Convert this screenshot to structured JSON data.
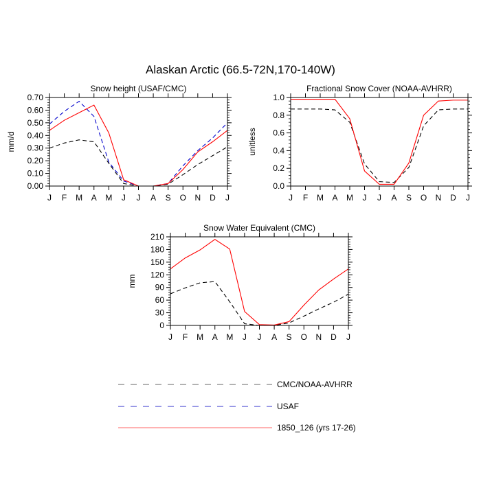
{
  "page_title": "Alaskan Arctic (66.5-72N,170-140W)",
  "styles": {
    "series": {
      "obs_black": {
        "color": "#000000",
        "dash": "dashed"
      },
      "usaf_blue": {
        "color": "#0000cc",
        "dash": "dashed"
      },
      "model_red": {
        "color": "#ff0000",
        "dash": "solid"
      }
    }
  },
  "legend": {
    "entries": [
      {
        "key": "obs_black",
        "label": "CMC/NOAA-AVHRR",
        "color": "#666666",
        "dash": "dashed"
      },
      {
        "key": "usaf_blue",
        "label": "USAF",
        "color": "#3333cc",
        "dash": "dashed"
      },
      {
        "key": "model_red",
        "label": "1850_126 (yrs 17-26)",
        "color": "#ff6666",
        "dash": "solid"
      }
    ]
  },
  "chart_data": [
    {
      "type": "line",
      "title": "Snow height (USAF/CMC)",
      "ylabel": "mm/d",
      "categories": [
        "J",
        "F",
        "M",
        "A",
        "M",
        "J",
        "J",
        "A",
        "S",
        "O",
        "N",
        "D",
        "J"
      ],
      "ylim": [
        0,
        0.7
      ],
      "yticks": [
        "0.00",
        "0.10",
        "0.20",
        "0.30",
        "0.40",
        "0.50",
        "0.60",
        "0.70"
      ],
      "ytick_values": [
        0,
        0.1,
        0.2,
        0.3,
        0.4,
        0.5,
        0.6,
        0.7
      ],
      "series": [
        {
          "key": "obs_black",
          "values": [
            0.3,
            0.34,
            0.365,
            0.35,
            0.18,
            0.02,
            0.0,
            0.0,
            0.015,
            0.09,
            0.17,
            0.24,
            0.31
          ]
        },
        {
          "key": "usaf_blue",
          "values": [
            0.49,
            0.59,
            0.67,
            0.55,
            0.19,
            0.04,
            0.0,
            0.0,
            0.02,
            0.16,
            0.28,
            0.38,
            0.5
          ]
        },
        {
          "key": "model_red",
          "values": [
            0.44,
            0.52,
            0.58,
            0.64,
            0.42,
            0.05,
            0.0,
            0.0,
            0.02,
            0.13,
            0.27,
            0.35,
            0.44
          ]
        }
      ]
    },
    {
      "type": "line",
      "title": "Fractional Snow Cover (NOAA-AVHRR)",
      "ylabel": "unitless",
      "categories": [
        "J",
        "F",
        "M",
        "A",
        "M",
        "J",
        "J",
        "A",
        "S",
        "O",
        "N",
        "D",
        "J"
      ],
      "ylim": [
        0,
        1.0
      ],
      "yticks": [
        "0.0",
        "0.2",
        "0.4",
        "0.6",
        "0.8",
        "1.0"
      ],
      "ytick_values": [
        0,
        0.2,
        0.4,
        0.6,
        0.8,
        1.0
      ],
      "series": [
        {
          "key": "obs_black",
          "values": [
            0.87,
            0.87,
            0.87,
            0.86,
            0.72,
            0.25,
            0.05,
            0.04,
            0.21,
            0.68,
            0.86,
            0.87,
            0.87
          ]
        },
        {
          "key": "model_red",
          "values": [
            0.98,
            0.98,
            0.98,
            0.98,
            0.76,
            0.17,
            0.02,
            0.02,
            0.26,
            0.8,
            0.96,
            0.97,
            0.97
          ]
        }
      ]
    },
    {
      "type": "line",
      "title": "Snow Water Equivalent (CMC)",
      "ylabel": "mm",
      "categories": [
        "J",
        "F",
        "M",
        "A",
        "M",
        "J",
        "J",
        "A",
        "S",
        "O",
        "N",
        "D",
        "J"
      ],
      "ylim": [
        0,
        210
      ],
      "yticks": [
        "0",
        "30",
        "60",
        "90",
        "120",
        "150",
        "180",
        "210"
      ],
      "ytick_values": [
        0,
        30,
        60,
        90,
        120,
        150,
        180,
        210
      ],
      "series": [
        {
          "key": "obs_black",
          "values": [
            75,
            89,
            101,
            104,
            56,
            4,
            0,
            0,
            6,
            22,
            39,
            55,
            74
          ]
        },
        {
          "key": "model_red",
          "values": [
            134,
            160,
            179,
            204,
            181,
            33,
            2,
            1,
            9,
            48,
            84,
            110,
            134
          ]
        }
      ]
    }
  ]
}
